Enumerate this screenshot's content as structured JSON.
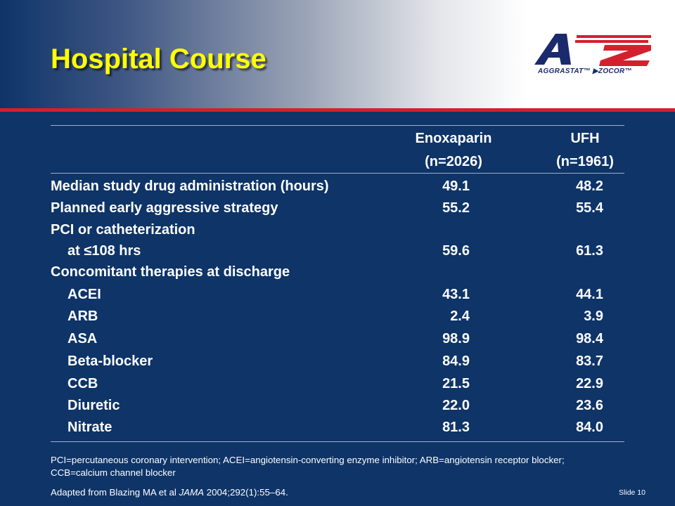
{
  "slide": {
    "title": "Hospital Course",
    "logo": {
      "letters": [
        "A",
        "to",
        "Z"
      ],
      "tagline": "AGGRASTAT™ ▶ZOCOR™",
      "colors": {
        "navy": "#1a2a6c",
        "red": "#d4202e"
      }
    }
  },
  "table": {
    "columns": [
      {
        "name": "Enoxaparin",
        "n": "(n=2026)"
      },
      {
        "name": "UFH",
        "n": "(n=1961)"
      }
    ],
    "rows": [
      {
        "label": "Median study drug administration (hours)",
        "v1": "49.1",
        "v2": "48.2"
      },
      {
        "label": "Planned early aggressive strategy",
        "v1": "55.2",
        "v2": "55.4"
      },
      {
        "label": "PCI or catheterization",
        "v1": "",
        "v2": ""
      },
      {
        "label_prefix": "at ",
        "label_symbol": "≤",
        "label_suffix": "108 hrs",
        "v1": "59.6",
        "v2": "61.3"
      },
      {
        "label": "Concomitant therapies at discharge",
        "v1": "",
        "v2": ""
      },
      {
        "label": "ACEI",
        "v1": "43.1",
        "v2": "44.1"
      },
      {
        "label": "ARB",
        "v1": "2.4",
        "v2": "3.9"
      },
      {
        "label": "ASA",
        "v1": "98.9",
        "v2": "98.4"
      },
      {
        "label": "Beta-blocker",
        "v1": "84.9",
        "v2": "83.7"
      },
      {
        "label": "CCB",
        "v1": "21.5",
        "v2": "22.9"
      },
      {
        "label": "Diuretic",
        "v1": "22.0",
        "v2": "23.6"
      },
      {
        "label": "Nitrate",
        "v1": "81.3",
        "v2": "84.0"
      }
    ]
  },
  "footnote": "PCI=percutaneous coronary intervention; ACEI=angiotensin-converting enzyme inhibitor; ARB=angiotensin receptor blocker; CCB=calcium channel blocker",
  "source": {
    "prefix": "Adapted from Blazing MA et al ",
    "journal": "JAMA",
    "suffix": " 2004;292(1):55–64."
  },
  "slide_number": "Slide 10",
  "colors": {
    "background": "#0e3468",
    "title": "#ffff00",
    "accent_rule": "#d4202e"
  }
}
